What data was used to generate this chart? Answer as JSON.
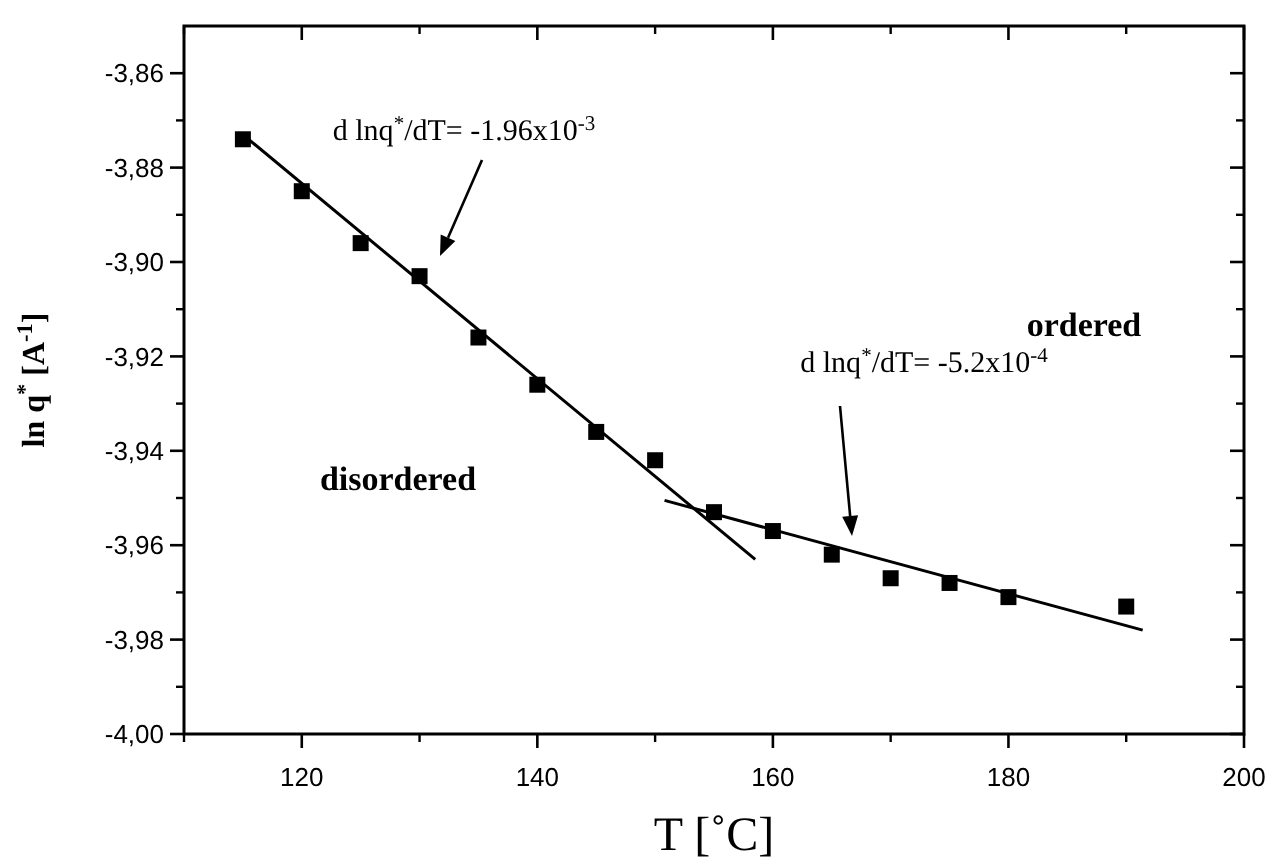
{
  "chart_data": {
    "type": "scatter",
    "xlabel": "T [˚C]",
    "ylabel": "ln q$^{*}$ [A$^{-1}$]",
    "xlim": [
      110,
      200
    ],
    "ylim": [
      -4.0,
      -3.85
    ],
    "xticks": [
      120,
      140,
      160,
      180,
      200
    ],
    "yticks": [
      {
        "value": -4.0,
        "label": "-4,00"
      },
      {
        "value": -3.98,
        "label": "-3,98"
      },
      {
        "value": -3.96,
        "label": "-3,96"
      },
      {
        "value": -3.94,
        "label": "-3,94"
      },
      {
        "value": -3.92,
        "label": "-3,92"
      },
      {
        "value": -3.9,
        "label": "-3,90"
      },
      {
        "value": -3.88,
        "label": "-3,88"
      },
      {
        "value": -3.86,
        "label": "-3,86"
      }
    ],
    "grid": false,
    "x": [
      115,
      120,
      125,
      130,
      135,
      140,
      145,
      150,
      155,
      160,
      165,
      170,
      175,
      180,
      190
    ],
    "series": [
      {
        "color": "#000000",
        "marker": "square",
        "values": [
          -3.874,
          -3.885,
          -3.896,
          -3.903,
          -3.916,
          -3.926,
          -3.936,
          -3.942,
          -3.953,
          -3.957,
          -3.962,
          -3.967,
          -3.968,
          -3.971,
          -3.973
        ]
      },
      {
        "type": "line",
        "color": "#000000",
        "marker": "none",
        "line_style": "solid",
        "x": [
          115,
          158.5
        ],
        "values": [
          -3.873,
          -3.963
        ]
      },
      {
        "type": "line",
        "color": "#000000",
        "marker": "none",
        "line_style": "solid",
        "x": [
          150.8,
          191.4
        ],
        "values": [
          -3.9505,
          -3.978
        ]
      }
    ],
    "annotations": [
      "d lnq$^{*}$/dT= -1.96x10$^{-3}$",
      "d lnq$^{*}$/dT= -5.2x10$^{-4}$",
      "disordered",
      "ordered"
    ]
  }
}
